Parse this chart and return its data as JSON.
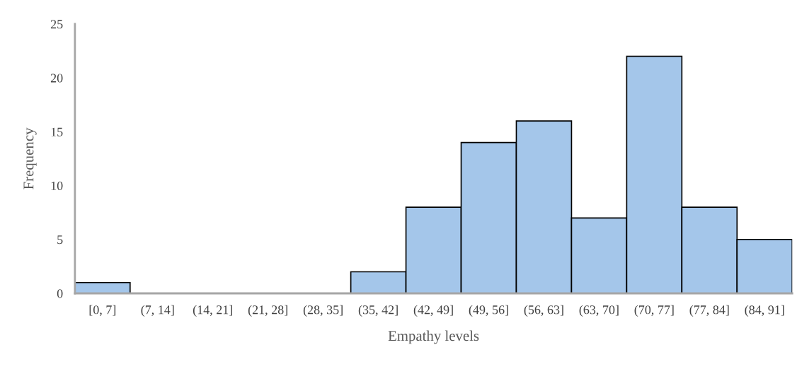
{
  "chart_data": {
    "type": "bar",
    "xlabel": "Empathy levels",
    "ylabel": "Frequency",
    "categories": [
      "[0, 7]",
      "(7, 14]",
      "(14, 21]",
      "(21, 28]",
      "(28, 35]",
      "(35, 42]",
      "(42, 49]",
      "(49, 56]",
      "(56, 63]",
      "(63, 70]",
      "(70, 77]",
      "(77, 84]",
      "(84, 91]"
    ],
    "values": [
      1,
      0,
      0,
      0,
      0,
      2,
      8,
      14,
      16,
      7,
      22,
      8,
      5
    ],
    "color": "#a4c6ea",
    "ylim": [
      0,
      25
    ],
    "yticks": [
      0,
      5,
      10,
      15,
      20,
      25
    ],
    "grid": false
  }
}
